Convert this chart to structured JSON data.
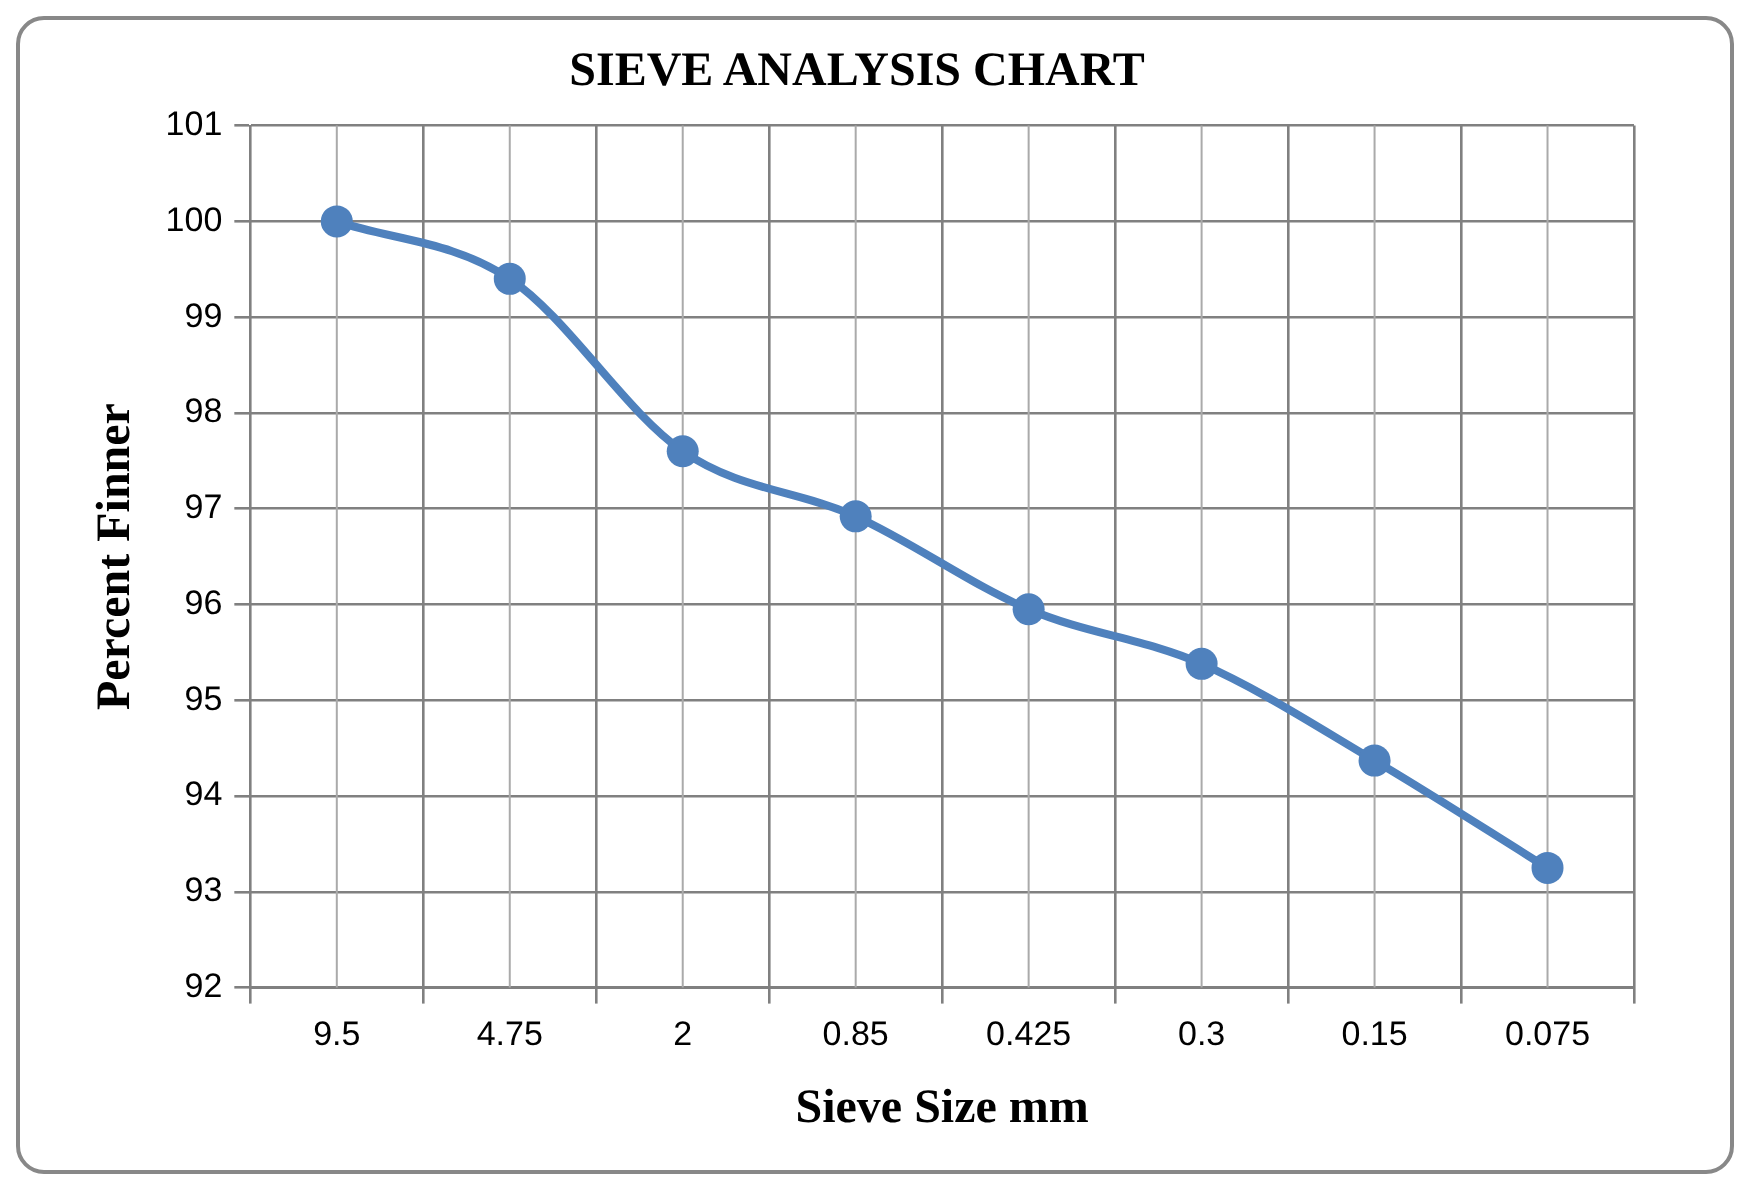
{
  "chart_data": {
    "type": "line",
    "title": "SIEVE ANALYSIS CHART",
    "xlabel": "Sieve Size mm",
    "ylabel": "Percent Finner",
    "categories": [
      "9.5",
      "4.75",
      "2",
      "0.85",
      "0.425",
      "0.3",
      "0.15",
      "0.075"
    ],
    "series": [
      {
        "color": "#4f81bd",
        "values": [
          100,
          99.4,
          97.6,
          96.92,
          95.95,
          95.38,
          94.37,
          93.25
        ]
      }
    ],
    "ylim": [
      92,
      101
    ],
    "yticks": [
      92,
      93,
      94,
      95,
      96,
      97,
      98,
      99,
      100,
      101
    ],
    "grid": true,
    "legend": false,
    "marker": "circle",
    "line_style": "solid"
  }
}
